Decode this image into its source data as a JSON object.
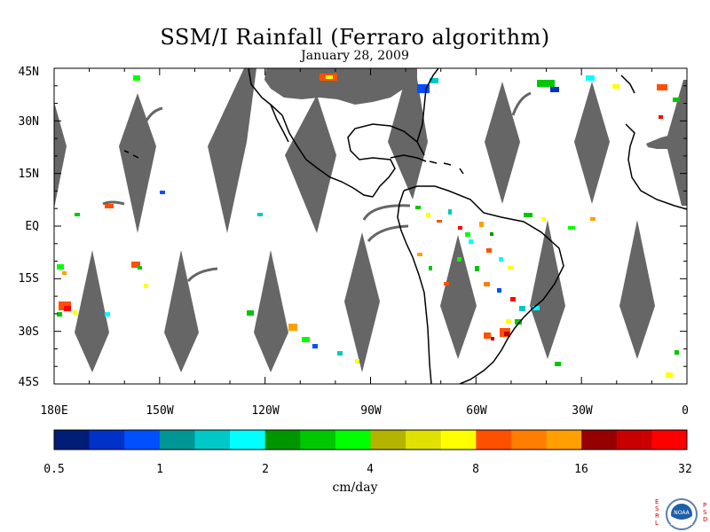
{
  "title": "SSM/I Rainfall (Ferraro algorithm)",
  "date": "January 28, 2009",
  "map": {
    "lon_range": [
      180,
      360
    ],
    "lat_range": [
      -45,
      45
    ],
    "lat_labels": [
      "45N",
      "30N",
      "15N",
      "EQ",
      "15S",
      "30S",
      "45S"
    ],
    "lon_labels": [
      "180E",
      "150W",
      "120W",
      "90W",
      "60W",
      "30W",
      "0"
    ],
    "no_data_color": "#666666",
    "coastline_color": "#000000",
    "land_nodata_color": "#666666"
  },
  "colorbar": {
    "units": "cm/day",
    "tick_labels": [
      "0.5",
      "1",
      "2",
      "4",
      "8",
      "16",
      "32"
    ],
    "colors": [
      "#001e78",
      "#0032c8",
      "#0050ff",
      "#009696",
      "#00c8c8",
      "#00ffff",
      "#009600",
      "#00c800",
      "#00ff00",
      "#b4b400",
      "#e1e100",
      "#ffff00",
      "#ff5000",
      "#ff7d00",
      "#ffa000",
      "#960000",
      "#c80000",
      "#ff0000"
    ]
  },
  "logo": {
    "left_letters": [
      "E",
      "S",
      "R",
      "L"
    ],
    "right_letters": [
      "P",
      "S",
      "D"
    ],
    "center_text": "NOAA"
  }
}
